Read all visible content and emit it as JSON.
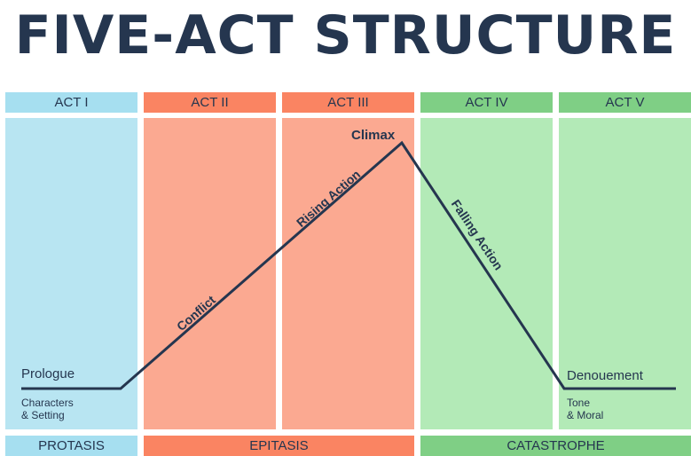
{
  "title": "FIVE-ACT STRUCTURE",
  "acts": [
    "ACT I",
    "ACT II",
    "ACT III",
    "ACT IV",
    "ACT V"
  ],
  "phases": [
    "PROTASIS",
    "EPITASIS",
    "CATASTROPHE"
  ],
  "labels": {
    "climax": "Climax",
    "rising_action": "Rising Action",
    "falling_action": "Falling Action",
    "conflict": "Conflict",
    "prologue": "Prologue",
    "prologue_detail_1": "Characters",
    "prologue_detail_2": "& Setting",
    "denouement": "Denouement",
    "denouement_detail_1": "Tone",
    "denouement_detail_2": "& Moral"
  },
  "colors": {
    "title": "#25364f",
    "line": "#25364f",
    "act_blue": "#b8e5f2",
    "act_red": "#fba991",
    "act_green": "#b3eab7"
  }
}
